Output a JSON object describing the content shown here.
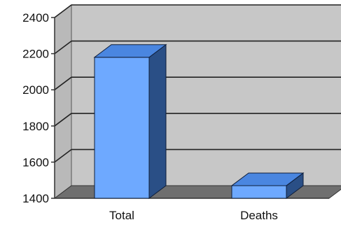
{
  "chart_data": {
    "type": "bar",
    "categories": [
      "Total",
      "Deaths"
    ],
    "values": [
      2180,
      1470
    ],
    "ylim": [
      1400,
      2400
    ],
    "yticks": [
      1400,
      1600,
      1800,
      2000,
      2200,
      2400
    ],
    "title": "",
    "xlabel": "",
    "ylabel": "",
    "grid": true,
    "style": "3d",
    "colors": {
      "bar_front": "#6ea9ff",
      "bar_top": "#4a86e0",
      "bar_side": "#2a4f86",
      "wall": "#c7c7c7",
      "floor": "#6f6f6f",
      "gridline": "#222222"
    }
  }
}
